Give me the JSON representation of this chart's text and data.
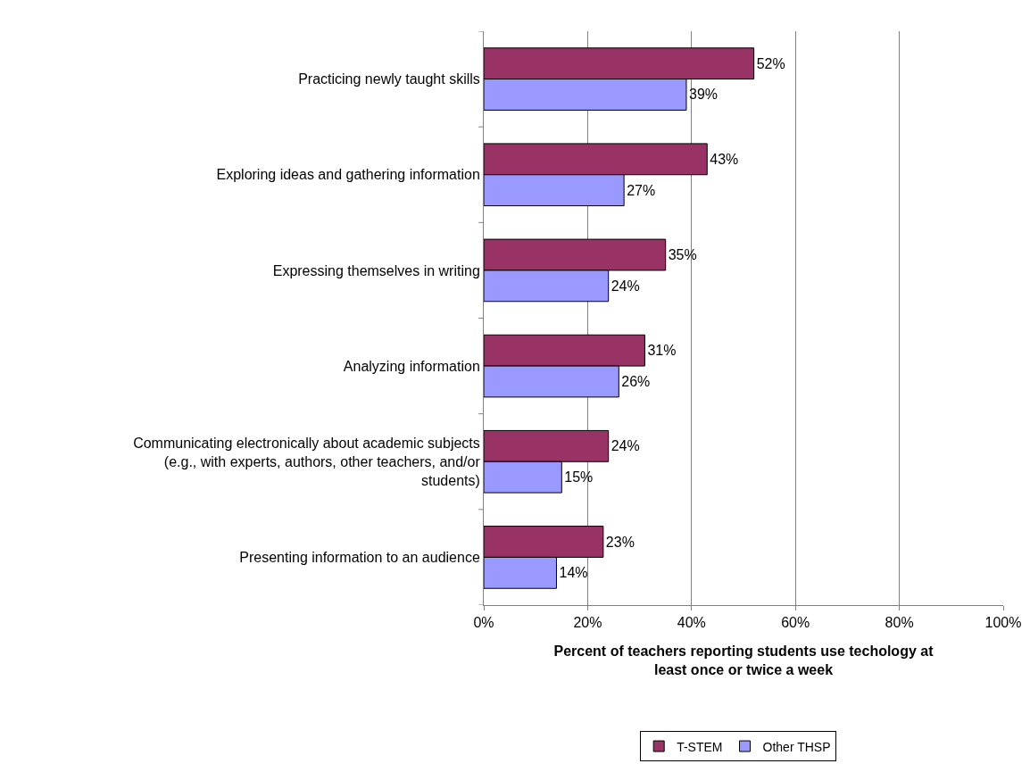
{
  "chart_data": {
    "type": "bar",
    "orientation": "horizontal",
    "xlabel": "Percent of teachers reporting students use techology at least once or twice a week",
    "categories": [
      "Practicing newly taught skills",
      "Exploring ideas and gathering information",
      "Expressing themselves in writing",
      "Analyzing information",
      "Communicating electronically about academic subjects (e.g., with experts, authors, other teachers, and/or students)",
      "Presenting information to an audience"
    ],
    "series": [
      {
        "name": "T-STEM",
        "color": "#993366",
        "values": [
          52,
          43,
          35,
          31,
          24,
          23
        ],
        "value_labels": [
          "52%",
          "43%",
          "35%",
          "31%",
          "24%",
          "23%"
        ]
      },
      {
        "name": "Other THSP",
        "color": "#9999ff",
        "values": [
          39,
          27,
          24,
          26,
          15,
          14
        ],
        "value_labels": [
          "39%",
          "27%",
          "24%",
          "26%",
          "15%",
          "14%"
        ]
      }
    ],
    "xlim": [
      0,
      100
    ],
    "xticks": [
      {
        "value": 0,
        "label": "0%"
      },
      {
        "value": 20,
        "label": "20%"
      },
      {
        "value": 40,
        "label": "40%"
      },
      {
        "value": 60,
        "label": "60%"
      },
      {
        "value": 80,
        "label": "80%"
      },
      {
        "value": 100,
        "label": "100%"
      }
    ],
    "grid": "x",
    "legend": "bottom"
  }
}
